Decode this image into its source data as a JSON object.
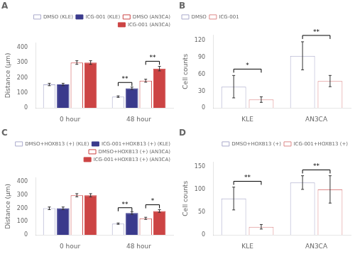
{
  "chart_data": [
    {
      "type": "bar",
      "title": "A",
      "categories": [
        "0 hour",
        "48 hour"
      ],
      "series": [
        {
          "name": "DMSO (KLE)",
          "color": "white",
          "edgecolor": "#aaaacc",
          "values": [
            155,
            75
          ],
          "errors": [
            8,
            5
          ]
        },
        {
          "name": "ICG-001 (KLE)",
          "color": "#3a3a8c",
          "edgecolor": "#3a3a8c",
          "values": [
            155,
            130
          ],
          "errors": [
            8,
            8
          ]
        },
        {
          "name": "DMSO (AN3CA)",
          "color": "white",
          "edgecolor": "#cc4444",
          "values": [
            300,
            180
          ],
          "errors": [
            12,
            10
          ]
        },
        {
          "name": "ICG-001 (AN3CA)",
          "color": "#cc4444",
          "edgecolor": "#cc4444",
          "values": [
            300,
            260
          ],
          "errors": [
            12,
            15
          ]
        }
      ],
      "ylabel": "Distance (μm)",
      "ylim": [
        0,
        430
      ],
      "yticks": [
        0,
        100,
        200,
        300,
        400
      ],
      "grid": false,
      "legend": "upper right",
      "annotations": [
        {
          "text": "**",
          "category": "48 hour",
          "between": [
            "DMSO (KLE)",
            "ICG-001 (KLE)"
          ],
          "y": 145
        },
        {
          "text": "**",
          "category": "48 hour",
          "between": [
            "DMSO (AN3CA)",
            "ICG-001 (AN3CA)"
          ],
          "y": 285
        }
      ]
    },
    {
      "type": "bar",
      "title": "B",
      "categories": [
        "KLE",
        "AN3CA"
      ],
      "series": [
        {
          "name": "DMSO",
          "color": "white",
          "edgecolor": "#aaaacc",
          "values": [
            38,
            93
          ],
          "errors": [
            20,
            25
          ]
        },
        {
          "name": "ICG-001",
          "color": "white",
          "edgecolor": "#dd8888",
          "values": [
            15,
            48
          ],
          "errors": [
            5,
            10
          ]
        }
      ],
      "ylabel": "Cell counts",
      "ylim": [
        0,
        130
      ],
      "yticks": [
        0,
        30,
        60,
        90,
        120
      ],
      "grid": false,
      "legend": "upper left",
      "annotations": [
        {
          "text": "*",
          "category": "KLE",
          "between": [
            "DMSO",
            "ICG-001"
          ],
          "y": 63
        },
        {
          "text": "**",
          "category": "AN3CA",
          "between": [
            "DMSO",
            "ICG-001"
          ],
          "y": 123
        }
      ]
    },
    {
      "type": "bar",
      "title": "C",
      "categories": [
        "0 hour",
        "48 hour"
      ],
      "series": [
        {
          "name": "DMSO+HOXB13 (+) (KLE)",
          "color": "white",
          "edgecolor": "#aaaacc",
          "values": [
            200,
            85
          ],
          "errors": [
            10,
            5
          ]
        },
        {
          "name": "ICG-001+HOXB13 (+) (KLE)",
          "color": "#3a3a8c",
          "edgecolor": "#3a3a8c",
          "values": [
            200,
            165
          ],
          "errors": [
            10,
            10
          ]
        },
        {
          "name": "DMSO+HOXB13 (+) (AN3CA)",
          "color": "white",
          "edgecolor": "#cc4444",
          "values": [
            298,
            125
          ],
          "errors": [
            12,
            8
          ]
        },
        {
          "name": "ICG-001+HOXB13 (+) (AN3CA)",
          "color": "#cc4444",
          "edgecolor": "#cc4444",
          "values": [
            298,
            180
          ],
          "errors": [
            12,
            10
          ]
        }
      ],
      "ylabel": "Distance (μm)",
      "ylim": [
        0,
        430
      ],
      "yticks": [
        0,
        100,
        200,
        300,
        400
      ],
      "grid": false,
      "legend": "upper right",
      "annotations": [
        {
          "text": "**",
          "category": "48 hour",
          "between": [
            "DMSO+HOXB13 (+) (KLE)",
            "ICG-001+HOXB13 (+) (KLE)"
          ],
          "y": 178
        },
        {
          "text": "*",
          "category": "48 hour",
          "between": [
            "DMSO+HOXB13 (+) (AN3CA)",
            "ICG-001+HOXB13 (+) (AN3CA)"
          ],
          "y": 200
        }
      ]
    },
    {
      "type": "bar",
      "title": "D",
      "categories": [
        "KLE",
        "AN3CA"
      ],
      "series": [
        {
          "name": "DMSO+HOXB13 (+)",
          "color": "white",
          "edgecolor": "#aaaacc",
          "values": [
            80,
            115
          ],
          "errors": [
            25,
            15
          ]
        },
        {
          "name": "ICG-001+HOXB13 (+)",
          "color": "white",
          "edgecolor": "#dd8888",
          "values": [
            18,
            100
          ],
          "errors": [
            5,
            30
          ]
        }
      ],
      "ylabel": "Cell counts",
      "ylim": [
        0,
        160
      ],
      "yticks": [
        0,
        50,
        100,
        150
      ],
      "grid": false,
      "legend": "upper right",
      "annotations": [
        {
          "text": "**",
          "category": "KLE",
          "between": [
            "DMSO+HOXB13 (+)",
            "ICG-001+HOXB13 (+)"
          ],
          "y": 110
        },
        {
          "text": "**",
          "category": "AN3CA",
          "between": [
            "DMSO+HOXB13 (+)",
            "ICG-001+HOXB13 (+)"
          ],
          "y": 135
        }
      ]
    }
  ]
}
